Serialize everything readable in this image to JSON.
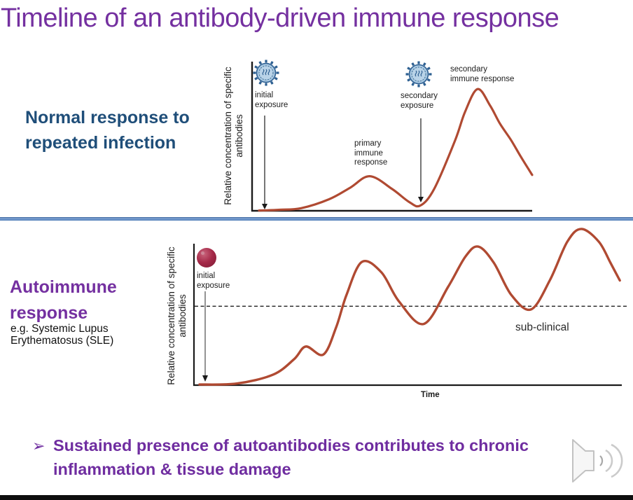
{
  "title": "Timeline of an antibody-driven immune response",
  "sections": {
    "normal": {
      "heading": "Normal response to repeated infection"
    },
    "autoimmune": {
      "heading": "Autoimmune response",
      "subheading": "e.g. Systemic Lupus Erythematosus (SLE)"
    }
  },
  "takeaway": {
    "bullet_glyph": "➢",
    "text": "Sustained presence of autoantibodies contributes to chronic inflammation & tissue damage"
  },
  "icons": {
    "virus": "virus-particle-icon",
    "autoantigen": "red-sphere-self-antigen-icon",
    "audio": "speaker-with-sound-waves-icon"
  },
  "colors": {
    "title_purple": "#7430a0",
    "normal_heading_blue": "#1f4e79",
    "curve_red": "#b04a32",
    "divider_blue": "#4a78b4"
  },
  "chart_data": [
    {
      "id": "normal-immune-response",
      "type": "line",
      "title": "Normal response to repeated infection",
      "xlabel": "",
      "ylabel": "Relative concentration of specific antibodies",
      "xlim": [
        0,
        100
      ],
      "ylim": [
        0,
        100
      ],
      "grid": false,
      "legend": "none",
      "series": [
        {
          "name": "specific antibody concentration (relative units)",
          "points": [
            [
              2.5,
              0.2
            ],
            [
              10,
              0.8
            ],
            [
              17.5,
              2
            ],
            [
              27.5,
              9
            ],
            [
              35,
              18
            ],
            [
              42,
              27
            ],
            [
              50,
              17
            ],
            [
              56,
              7
            ],
            [
              60,
              4
            ],
            [
              65,
              17
            ],
            [
              72.5,
              55
            ],
            [
              76,
              77
            ],
            [
              80.5,
              95
            ],
            [
              85,
              82
            ],
            [
              88.5,
              68
            ],
            [
              92.5,
              55
            ],
            [
              96,
              42
            ],
            [
              100,
              28
            ]
          ]
        }
      ],
      "annotations": [
        {
          "label": "initial exposure",
          "x": 4.5,
          "type": "arrow-down",
          "icon": "virus"
        },
        {
          "label": "primary immune response",
          "x": 42,
          "y": 27,
          "type": "peak-label"
        },
        {
          "label": "secondary exposure",
          "x": 60,
          "type": "arrow-down",
          "icon": "virus"
        },
        {
          "label": "secondary immune response",
          "x": 80.5,
          "y": 95,
          "type": "peak-label"
        }
      ]
    },
    {
      "id": "autoimmune-response-sle",
      "type": "line",
      "title": "Autoimmune response",
      "subtitle": "e.g. Systemic Lupus Erythematosus (SLE)",
      "xlabel": "Time",
      "ylabel": "Relative concentration of specific antibodies",
      "xlim": [
        0,
        100
      ],
      "ylim": [
        0,
        100
      ],
      "grid": false,
      "legend": "none",
      "series": [
        {
          "name": "autoantibody concentration (relative units)",
          "points": [
            [
              1.3,
              0.4
            ],
            [
              10,
              1
            ],
            [
              18.5,
              6.5
            ],
            [
              23.4,
              16
            ],
            [
              26.2,
              24
            ],
            [
              30.3,
              19
            ],
            [
              33.3,
              36
            ],
            [
              35.7,
              56
            ],
            [
              39.3,
              76.5
            ],
            [
              43.9,
              70
            ],
            [
              48,
              52
            ],
            [
              53.8,
              38
            ],
            [
              59.5,
              61
            ],
            [
              63.6,
              80
            ],
            [
              66.6,
              86
            ],
            [
              70.2,
              76
            ],
            [
              74.3,
              56
            ],
            [
              78.9,
              47
            ],
            [
              83.3,
              65
            ],
            [
              87.4,
              89
            ],
            [
              90.7,
              97
            ],
            [
              94.8,
              89
            ],
            [
              97.5,
              76
            ],
            [
              99.7,
              65
            ]
          ]
        }
      ],
      "threshold": {
        "label": "sub-clinical",
        "y": 49,
        "style": "dashed"
      },
      "annotations": [
        {
          "label": "initial exposure",
          "x": 2.6,
          "type": "arrow-down",
          "icon": "autoantigen"
        }
      ]
    }
  ]
}
